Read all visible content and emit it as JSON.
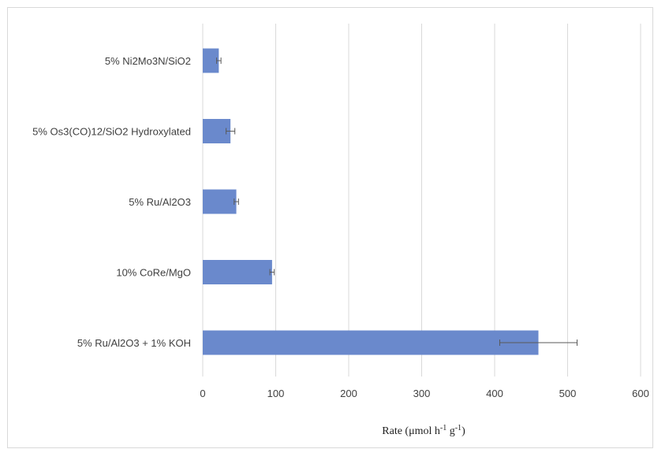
{
  "chart_data": {
    "type": "bar",
    "orientation": "horizontal",
    "categories": [
      "5% Ni2Mo3N/SiO2",
      "5% Os3(CO)12/SiO2 Hydroxylated",
      "5% Ru/Al2O3",
      "10% CoRe/MgO",
      "5% Ru/Al2O3 + 1% KOH"
    ],
    "values": [
      22,
      38,
      46,
      95,
      460
    ],
    "errors": [
      3,
      6,
      3,
      3,
      53
    ],
    "xlim": [
      0,
      600
    ],
    "xticks": [
      0,
      100,
      200,
      300,
      400,
      500,
      600
    ],
    "xlabel": "Rate (μmol h⁻¹ g⁻¹)",
    "ylabel": "",
    "title": "",
    "grid": "vertical",
    "bar_color": "#6a89cc",
    "error_bar_color": "#595959"
  }
}
